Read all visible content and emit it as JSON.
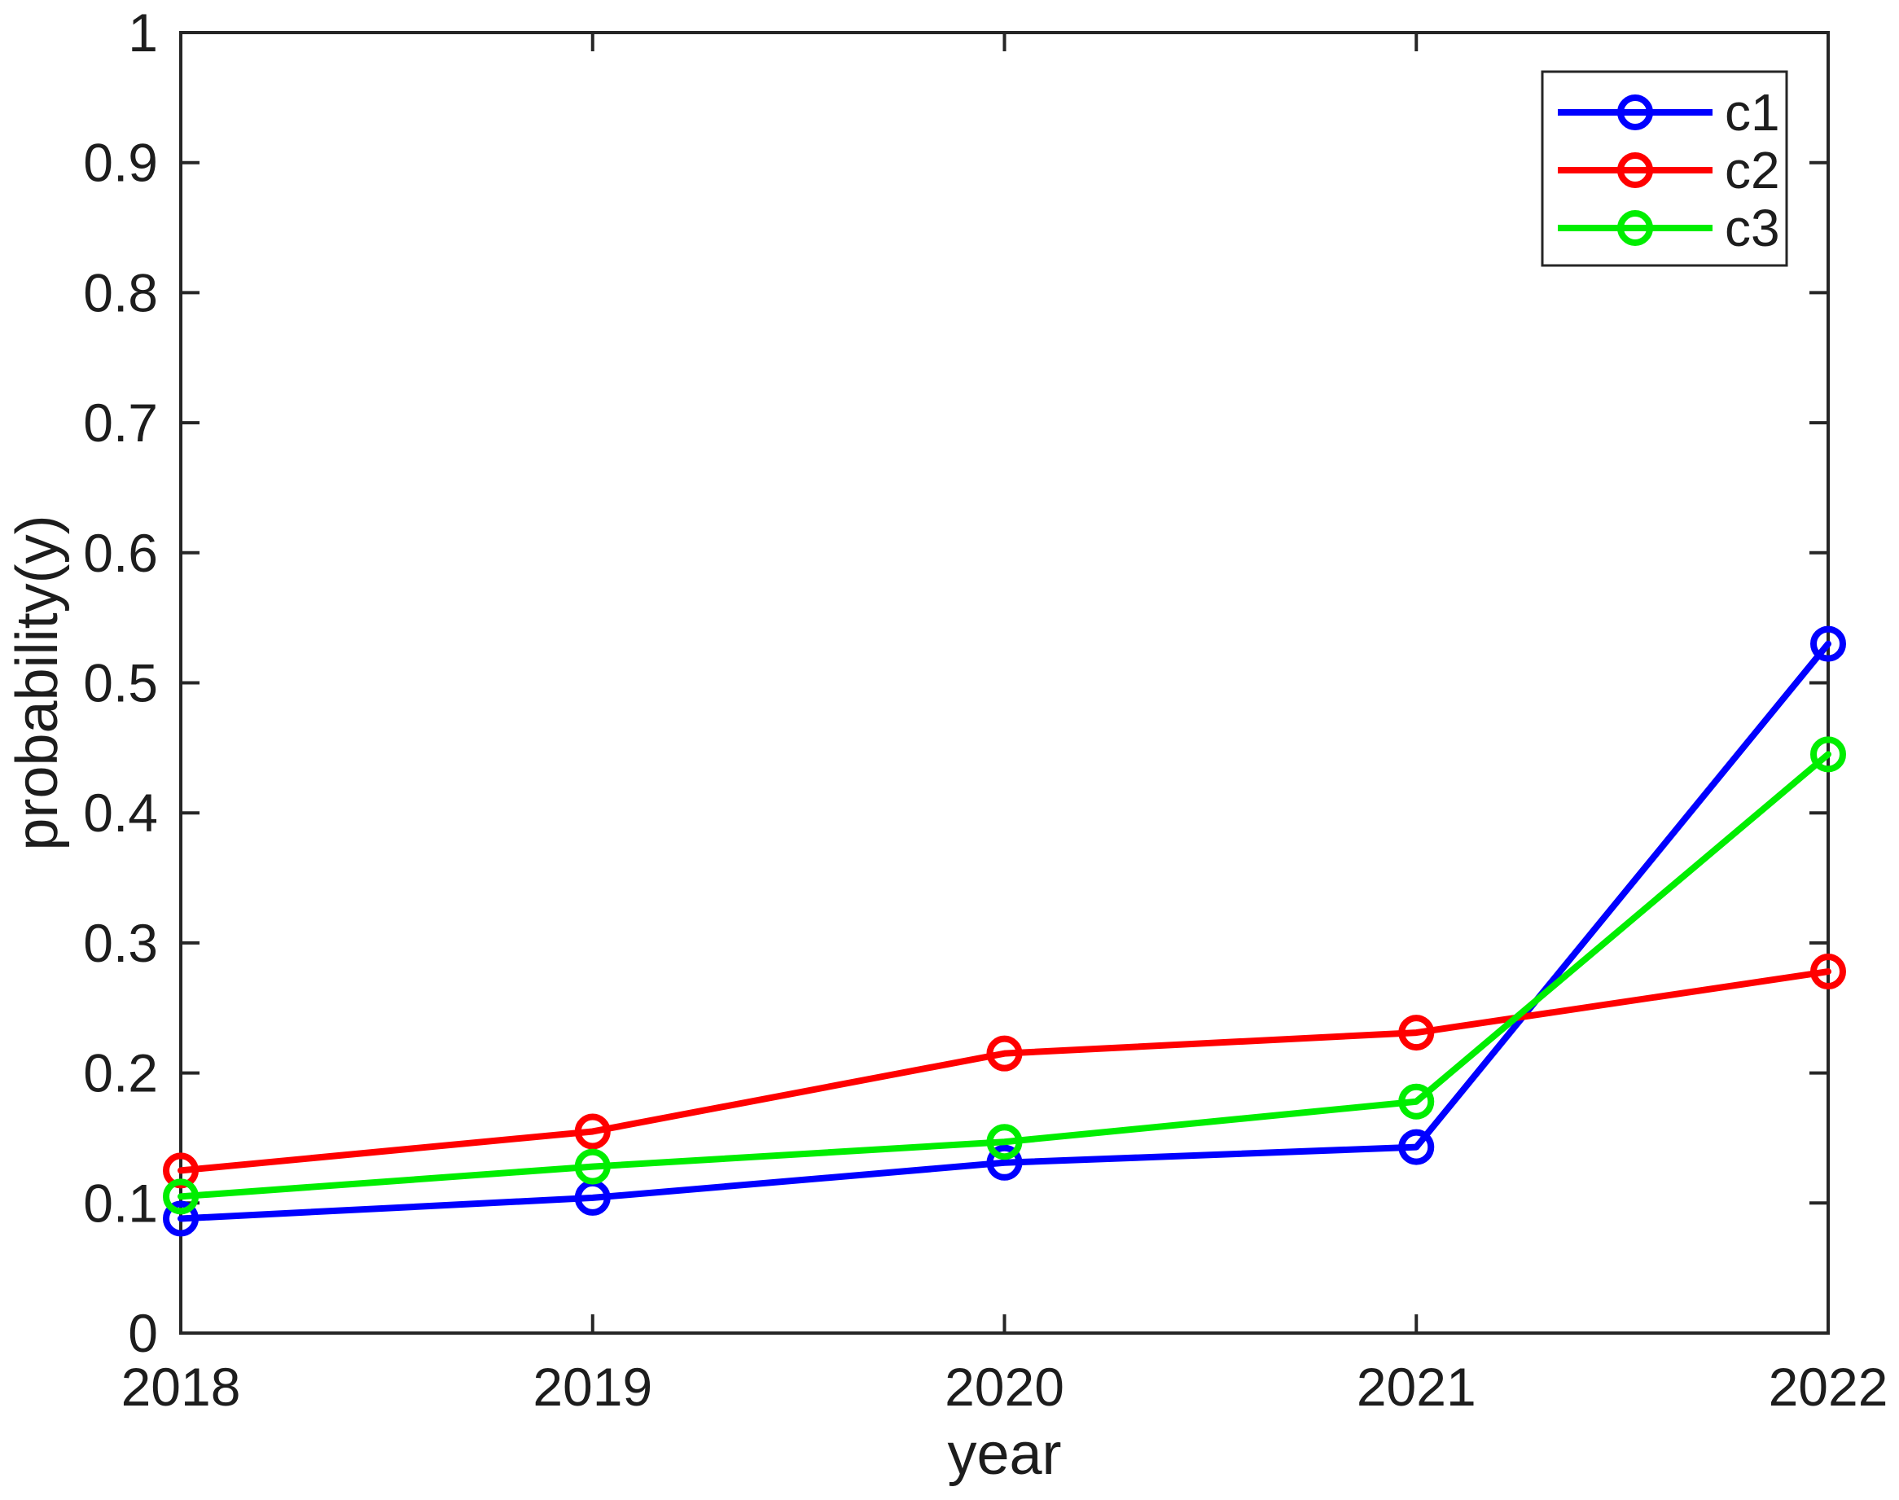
{
  "figure": {
    "background": "#ffffff",
    "axis_color": "#262626",
    "text_color": "#1d1d1d"
  },
  "chart_data": {
    "type": "line",
    "title": "",
    "xlabel": "year",
    "ylabel": "probability(y)",
    "x": [
      2018,
      2019,
      2020,
      2021,
      2022
    ],
    "x_tick_labels": [
      "2018",
      "2019",
      "2020",
      "2021",
      "2022"
    ],
    "xlim": [
      2018,
      2022
    ],
    "y_ticks": [
      0,
      0.1,
      0.2,
      0.3,
      0.4,
      0.5,
      0.6,
      0.7,
      0.8,
      0.9,
      1
    ],
    "y_tick_labels": [
      "0",
      "0.1",
      "0.2",
      "0.3",
      "0.4",
      "0.5",
      "0.6",
      "0.7",
      "0.8",
      "0.9",
      "1"
    ],
    "ylim": [
      0,
      1
    ],
    "grid": false,
    "marker": "circle",
    "legend_position": "top-right",
    "series": [
      {
        "name": "c1",
        "color": "#0000ff",
        "values": [
          0.088,
          0.104,
          0.131,
          0.143,
          0.53
        ]
      },
      {
        "name": "c2",
        "color": "#ff0000",
        "values": [
          0.125,
          0.155,
          0.215,
          0.231,
          0.278
        ]
      },
      {
        "name": "c3",
        "color": "#00ee00",
        "values": [
          0.105,
          0.128,
          0.147,
          0.178,
          0.445
        ]
      }
    ]
  }
}
